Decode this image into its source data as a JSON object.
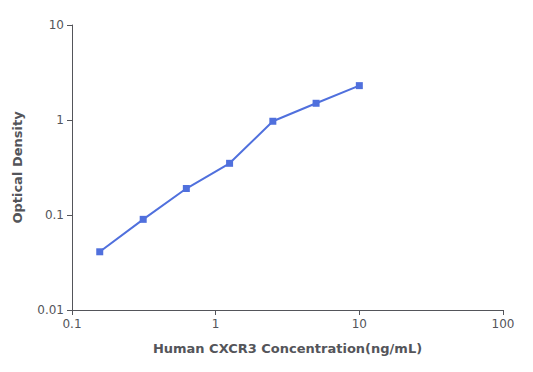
{
  "chart_data": {
    "type": "line",
    "x": [
      0.156,
      0.313,
      0.625,
      1.25,
      2.5,
      5.0,
      10.0
    ],
    "values": [
      0.041,
      0.09,
      0.19,
      0.35,
      0.97,
      1.5,
      2.3
    ],
    "xlabel": "Human CXCR3 Concentration(ng/mL)",
    "ylabel": "Optical Density",
    "xlim": [
      0.1,
      100
    ],
    "ylim": [
      0.01,
      10
    ],
    "xticks": [
      0.1,
      1,
      10,
      100
    ],
    "yticks": [
      0.01,
      0.1,
      1,
      10
    ],
    "log": true,
    "grid": false,
    "marker": "square"
  }
}
